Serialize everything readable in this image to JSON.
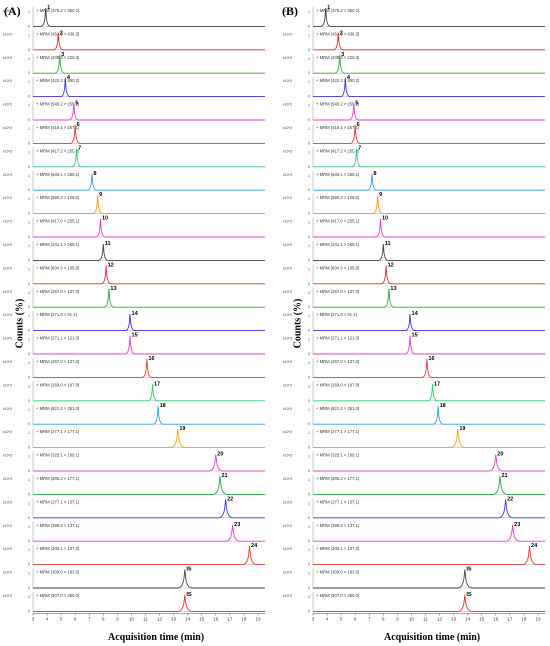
{
  "panels": {
    "left_label": "(A)",
    "right_label": "(B)",
    "ylabel": "Counts (%)",
    "xlabel": "Acquisition time (min)"
  },
  "chart_data": {
    "type": "line",
    "x_ticks": [
      3,
      4,
      5,
      6,
      7,
      8,
      9,
      10,
      11,
      12,
      13,
      14,
      15,
      16,
      17,
      18,
      19
    ],
    "xlim": [
      3,
      19.5
    ],
    "trace_prefix": "+ MRM",
    "scale_label": "x10^2",
    "traces": [
      {
        "n": "1",
        "mrm": "(378.2 > 360.2)",
        "color": "#444444",
        "rt": 3.9
      },
      {
        "n": "2",
        "mrm": "(454.3 > 436.3)",
        "color": "#e8293b",
        "rt": 4.8
      },
      {
        "n": "3",
        "mrm": "(438.3 > 420.3)",
        "color": "#2aa84a",
        "rt": 4.9
      },
      {
        "n": "4",
        "mrm": "(422.3 > 390.2)",
        "color": "#3a3ad8",
        "rt": 5.3
      },
      {
        "n": "5",
        "mrm": "(549.2 > 255.1)",
        "color": "#e040c8",
        "rt": 5.9
      },
      {
        "n": "6",
        "mrm": "(419.1 > 257.1)",
        "color": "#e23c3c",
        "rt": 6.0
      },
      {
        "n": "7",
        "mrm": "(417.2 > 255.0)",
        "color": "#2ecc71",
        "rt": 6.1
      },
      {
        "n": "8",
        "mrm": "(549.1 > 255.1)",
        "color": "#2b9be0",
        "rt": 7.2
      },
      {
        "n": "9",
        "mrm": "(590.3 > 105.0)",
        "color": "#f0a020",
        "rt": 7.6
      },
      {
        "n": "10",
        "mrm": "(417.0 > 255.1)",
        "color": "#e040c8",
        "rt": 7.8
      },
      {
        "n": "11",
        "mrm": "(431.1 > 269.1)",
        "color": "#444444",
        "rt": 8.0
      },
      {
        "n": "12",
        "mrm": "(604.3 > 105.0)",
        "color": "#e8293b",
        "rt": 8.2
      },
      {
        "n": "13",
        "mrm": "(257.0 > 137.0)",
        "color": "#2aa84a",
        "rt": 8.4
      },
      {
        "n": "14",
        "mrm": "(271.0 > 91.1)",
        "color": "#3a3ad8",
        "rt": 9.9
      },
      {
        "n": "15",
        "mrm": "(271.1 > 121.0)",
        "color": "#e040c8",
        "rt": 9.9
      },
      {
        "n": "16",
        "mrm": "(257.0 > 137.0)",
        "color": "#e23c3c",
        "rt": 11.1
      },
      {
        "n": "17",
        "mrm": "(269.0 > 197.0)",
        "color": "#2ecc71",
        "rt": 11.5
      },
      {
        "n": "18",
        "mrm": "(821.4 > 351.0)",
        "color": "#2b9be0",
        "rt": 11.9
      },
      {
        "n": "19",
        "mrm": "(277.1 > 177.1)",
        "color": "#f0a020",
        "rt": 13.3
      },
      {
        "n": "20",
        "mrm": "(325.1 > 189.1)",
        "color": "#e040c8",
        "rt": 16.0
      },
      {
        "n": "21",
        "mrm": "(305.2 > 177.1)",
        "color": "#2aa84a",
        "rt": 16.3
      },
      {
        "n": "22",
        "mrm": "(277.1 > 137.1)",
        "color": "#3a3ad8",
        "rt": 16.7
      },
      {
        "n": "23",
        "mrm": "(398.2 > 137.1)",
        "color": "#e040c8",
        "rt": 17.2
      },
      {
        "n": "24",
        "mrm": "(305.1 > 137.0)",
        "color": "#e23c3c",
        "rt": 18.4
      },
      {
        "n": "IS",
        "mrm": "(309.0 > 163.0)",
        "color": "#444444",
        "rt": 13.8
      },
      {
        "n": "IS",
        "mrm": "(307.0 > 250.0)",
        "color": "#e8293b",
        "rt": 13.8
      }
    ]
  }
}
